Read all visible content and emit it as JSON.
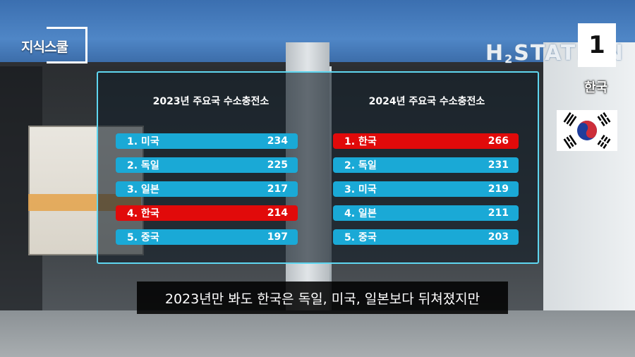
{
  "scene": {
    "station_sign": "H",
    "station_sign_sub": "2",
    "station_sign_rest": "STATION"
  },
  "logo": {
    "text": "지식스쿨"
  },
  "rank_badge": {
    "number": "1",
    "country": "한국"
  },
  "flag": {
    "name": "south-korea-flag"
  },
  "colors": {
    "row_default": "#1aa9d6",
    "row_highlight": "#e10a0a",
    "panel_border": "#5fd6f0"
  },
  "panel": {
    "left": {
      "title": "2023년 주요국 수소충전소",
      "rows": [
        {
          "label": "1.  미국",
          "value": "234",
          "highlight": false
        },
        {
          "label": "2. 독일",
          "value": "225",
          "highlight": false
        },
        {
          "label": "3. 일본",
          "value": "217",
          "highlight": false
        },
        {
          "label": "4. 한국",
          "value": "214",
          "highlight": true
        },
        {
          "label": "5. 중국",
          "value": "197",
          "highlight": false
        }
      ]
    },
    "right": {
      "title": "2024년 주요국 수소충전소",
      "rows": [
        {
          "label": "1.  한국",
          "value": "266",
          "highlight": true
        },
        {
          "label": "2. 독일",
          "value": "231",
          "highlight": false
        },
        {
          "label": "3. 미국",
          "value": "219",
          "highlight": false
        },
        {
          "label": "4. 일본",
          "value": "211",
          "highlight": false
        },
        {
          "label": "5. 중국",
          "value": "203",
          "highlight": false
        }
      ]
    }
  },
  "subtitle": {
    "text": "2023년만 봐도 한국은 독일, 미국, 일본보다 뒤쳐졌지만"
  }
}
